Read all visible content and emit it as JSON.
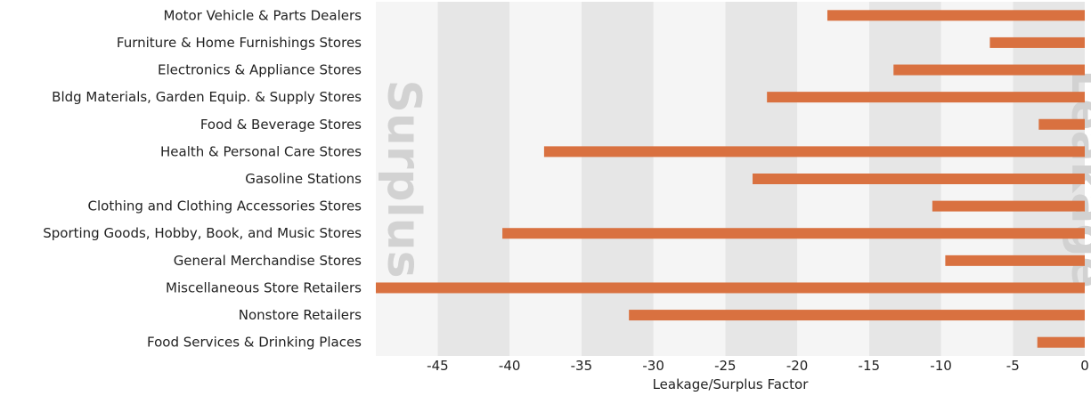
{
  "chart_data": {
    "type": "bar",
    "orientation": "horizontal",
    "categories": [
      "Motor Vehicle & Parts Dealers",
      "Furniture & Home Furnishings Stores",
      "Electronics & Appliance Stores",
      "Bldg Materials, Garden Equip. & Supply Stores",
      "Food & Beverage Stores",
      "Health & Personal Care Stores",
      "Gasoline Stations",
      "Clothing and Clothing Accessories Stores",
      "Sporting Goods, Hobby, Book, and Music Stores",
      "General Merchandise Stores",
      "Miscellaneous Store Retailers",
      "Nonstore Retailers",
      "Food Services & Drinking Places"
    ],
    "values": [
      -17.9,
      -6.6,
      -13.3,
      -22.1,
      -3.2,
      -37.6,
      -23.1,
      -10.6,
      -40.5,
      -9.7,
      -49.3,
      -31.7,
      -3.3
    ],
    "xlabel": "Leakage/Surplus Factor",
    "xlim": [
      -49.3,
      0
    ],
    "xticks": [
      -45,
      -40,
      -35,
      -30,
      -25,
      -20,
      -15,
      -10,
      -5,
      0
    ],
    "xtick_labels": [
      "-45",
      "-40",
      "-35",
      "-30",
      "-25",
      "-20",
      "-15",
      "-10",
      "-5",
      "0"
    ],
    "watermark_left": "Surplus",
    "watermark_right": "Leakage",
    "grid": "alternating vertical bands",
    "colors": {
      "bar": "#d97140",
      "band_dark": "#e6e6e6",
      "band_light": "#f5f5f5",
      "watermark": "#d2d2d2",
      "text": "#222222"
    }
  }
}
